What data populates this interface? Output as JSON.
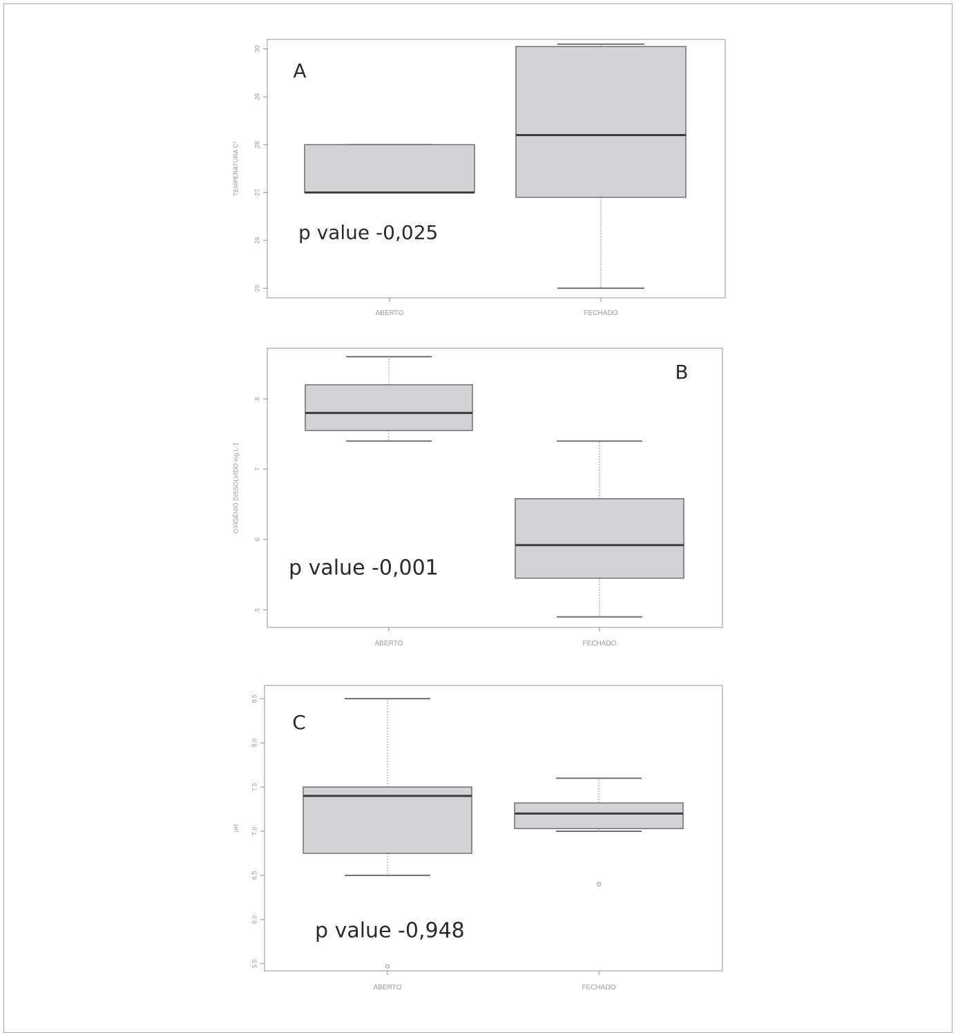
{
  "colors": {
    "box_fill": "#d3d3d5",
    "box_stroke": "#6e6e6e",
    "median": "#3a3a3a",
    "axis": "#8a8a8a",
    "whisker": "#8f8f8f",
    "panel_border": "#b5b5b5",
    "tick_text": "#9a9a9a",
    "annotation_text": "#2a2a2a"
  },
  "chart_data": [
    {
      "type": "box",
      "panel_label": "A",
      "ylabel": "TEMPERATURA C°",
      "xlabel": "",
      "ylim": [
        24.8,
        30.2
      ],
      "yticks": [
        25,
        26,
        27,
        28,
        29,
        30
      ],
      "categories": [
        "ABERTO",
        "FECHADO"
      ],
      "boxes": [
        {
          "category": "ABERTO",
          "whisker_low": 27,
          "q1": 27,
          "median": 27,
          "q3": 28,
          "whisker_high": 28,
          "outliers": []
        },
        {
          "category": "FECHADO",
          "whisker_low": 25,
          "q1": 26.9,
          "median": 28.2,
          "q3": 30.05,
          "whisker_high": 30.1,
          "outliers": []
        }
      ],
      "annotation": "p value -0,025"
    },
    {
      "type": "box",
      "panel_label": "B",
      "ylabel": "OXIGÊNIO DISSOLVIDO mg.L-1",
      "xlabel": "",
      "ylim": [
        4.75,
        8.72
      ],
      "yticks": [
        5,
        6,
        7,
        8
      ],
      "categories": [
        "ABERTO",
        "FECHADO"
      ],
      "boxes": [
        {
          "category": "ABERTO",
          "whisker_low": 7.4,
          "q1": 7.55,
          "median": 7.8,
          "q3": 8.2,
          "whisker_high": 8.6,
          "outliers": []
        },
        {
          "category": "FECHADO",
          "whisker_low": 4.9,
          "q1": 5.45,
          "median": 5.92,
          "q3": 6.58,
          "whisker_high": 7.4,
          "outliers": []
        }
      ],
      "annotation": "p value -0,001"
    },
    {
      "type": "box",
      "panel_label": "C",
      "ylabel": "pH",
      "xlabel": "",
      "ylim": [
        5.42,
        8.65
      ],
      "yticks": [
        5.5,
        6.0,
        6.5,
        7.0,
        7.5,
        8.0,
        8.5
      ],
      "ytick_labels": [
        "5.5",
        "6.0",
        "6.5",
        "7.0",
        "7.5",
        "8.0",
        "8.5"
      ],
      "categories": [
        "ABERTO",
        "FECHADO"
      ],
      "boxes": [
        {
          "category": "ABERTO",
          "whisker_low": 6.5,
          "q1": 6.75,
          "median": 7.4,
          "q3": 7.5,
          "whisker_high": 8.5,
          "outliers": [
            5.47
          ]
        },
        {
          "category": "FECHADO",
          "whisker_low": 7.0,
          "q1": 7.03,
          "median": 7.2,
          "q3": 7.32,
          "whisker_high": 7.6,
          "outliers": [
            6.4
          ]
        }
      ],
      "annotation": "p value -0,948"
    }
  ]
}
